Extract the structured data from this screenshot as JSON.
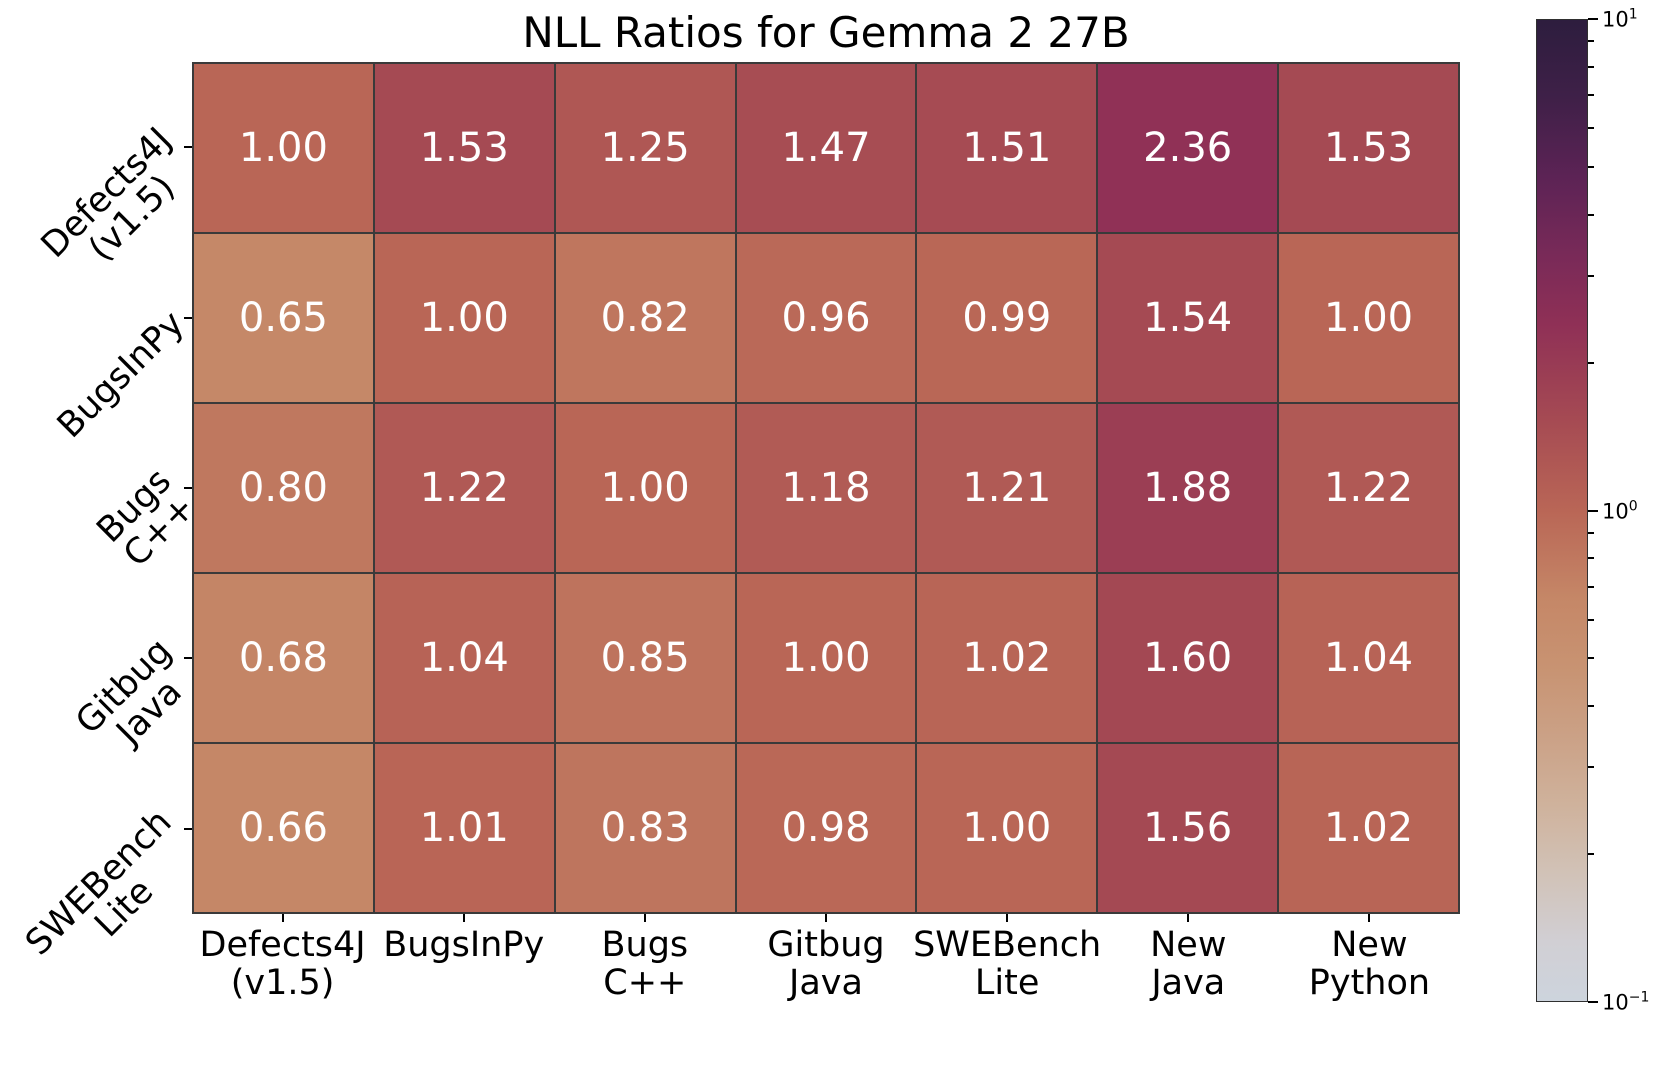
{
  "chart_data": {
    "type": "heatmap",
    "title": "NLL Ratios for Gemma 2 27B",
    "row_labels": [
      [
        "Defects4J",
        "(v1.5)"
      ],
      [
        "BugsInPy"
      ],
      [
        "Bugs",
        "C++"
      ],
      [
        "Gitbug",
        "Java"
      ],
      [
        "SWEBench",
        "Lite"
      ]
    ],
    "col_labels": [
      [
        "Defects4J",
        "(v1.5)"
      ],
      [
        "BugsInPy"
      ],
      [
        "Bugs",
        "C++"
      ],
      [
        "Gitbug",
        "Java"
      ],
      [
        "SWEBench",
        "Lite"
      ],
      [
        "New",
        "Java"
      ],
      [
        "New",
        "Python"
      ]
    ],
    "values": [
      [
        1.0,
        1.53,
        1.25,
        1.47,
        1.51,
        2.36,
        1.53
      ],
      [
        0.65,
        1.0,
        0.82,
        0.96,
        0.99,
        1.54,
        1.0
      ],
      [
        0.8,
        1.22,
        1.0,
        1.18,
        1.21,
        1.88,
        1.22
      ],
      [
        0.68,
        1.04,
        0.85,
        1.0,
        1.02,
        1.6,
        1.04
      ],
      [
        0.66,
        1.01,
        0.83,
        0.98,
        1.0,
        1.56,
        1.02
      ]
    ],
    "value_format": "0.00",
    "scale": "log",
    "vmin": 0.1,
    "vmax": 10,
    "grid_on": true,
    "colorbar": {
      "position": "right",
      "tick_labels": [
        {
          "base": "10",
          "exp": "1",
          "frac": 1
        },
        {
          "base": "10",
          "exp": "0",
          "frac": 0.5
        },
        {
          "base": "10",
          "exp": "−1",
          "frac": 0
        }
      ],
      "minor_tick_values": [
        9,
        8,
        7,
        6,
        5,
        4,
        3,
        2,
        0.9,
        0.8,
        0.7,
        0.6,
        0.5,
        0.4,
        0.3,
        0.2
      ],
      "gradient_stops": [
        {
          "t": 0.0,
          "color": "#cdd4dd"
        },
        {
          "t": 0.06,
          "color": "#d1cfd4"
        },
        {
          "t": 0.13,
          "color": "#d1c2b7"
        },
        {
          "t": 0.2,
          "color": "#cfb29c"
        },
        {
          "t": 0.27,
          "color": "#cba186"
        },
        {
          "t": 0.34,
          "color": "#c89372"
        },
        {
          "t": 0.41,
          "color": "#c58767"
        },
        {
          "t": 0.5,
          "color": "#b96656"
        },
        {
          "t": 0.59,
          "color": "#a64b53"
        },
        {
          "t": 0.69,
          "color": "#8f3056"
        },
        {
          "t": 0.76,
          "color": "#792a58"
        },
        {
          "t": 0.84,
          "color": "#5c2355"
        },
        {
          "t": 0.92,
          "color": "#3f2048"
        },
        {
          "t": 1.0,
          "color": "#2d1d3e"
        }
      ]
    },
    "colors": {
      "cell_text": "#ffffff",
      "grid_line": "#3a3a3a",
      "tick": "#000000",
      "label_text": "#000000",
      "background": "#ffffff",
      "colorbar_outline": "#2f2f2f"
    }
  }
}
